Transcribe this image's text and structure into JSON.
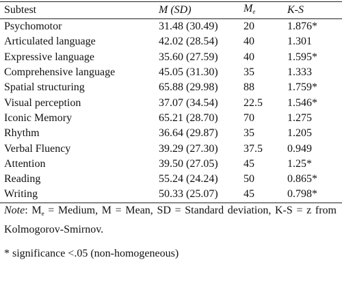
{
  "table": {
    "header": {
      "subtest": "Subtest",
      "m_sd": "M (SD)",
      "me": "M",
      "me_sub": "e",
      "ks": "K-S"
    },
    "rows": [
      [
        "Psychomotor",
        "31.48 (30.49)",
        "20",
        "1.876*"
      ],
      [
        "Articulated language",
        "42.02 (28.54)",
        "40",
        "1.301"
      ],
      [
        "Expressive language",
        "35.60 (27.59)",
        "40",
        "1.595*"
      ],
      [
        "Comprehensive language",
        "45.05 (31.30)",
        "35",
        "1.333"
      ],
      [
        "Spatial structuring",
        "65.88 (29.98)",
        "88",
        "1.759*"
      ],
      [
        "Visual perception",
        "37.07 (34.54)",
        "22.5",
        "1.546*"
      ],
      [
        "Iconic Memory",
        "65.21 (28.70)",
        "70",
        "1.275"
      ],
      [
        "Rhythm",
        "36.64 (29.87)",
        "35",
        "1.205"
      ],
      [
        "Verbal Fluency",
        "39.29 (27.30)",
        "37.5",
        "0.949"
      ],
      [
        "Attention",
        "39.50 (27.05)",
        "45",
        "1.25*"
      ],
      [
        "Reading",
        "55.24 (24.24)",
        "50",
        "0.865*"
      ],
      [
        "Writing",
        "50.33 (25.07)",
        "45",
        "0.798*"
      ]
    ]
  },
  "note": {
    "label": "Note",
    "me": ": M",
    "me_sub": "e",
    "text": " = Medium, M = Mean, SD = Standard deviation, K-S = z from Kolmogorov-Smirnov."
  },
  "footnote": "* significance <.05 (non-homogeneous)"
}
